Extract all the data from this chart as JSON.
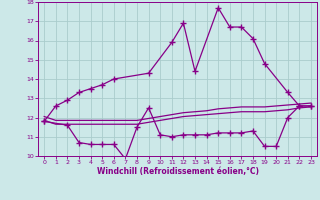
{
  "bg_color": "#cce8e8",
  "line_color": "#880088",
  "grid_color": "#aacccc",
  "xlabel": "Windchill (Refroidissement éolien,°C)",
  "xlim": [
    -0.5,
    23.5
  ],
  "ylim": [
    10,
    18
  ],
  "xticks": [
    0,
    1,
    2,
    3,
    4,
    5,
    6,
    7,
    8,
    9,
    10,
    11,
    12,
    13,
    14,
    15,
    16,
    17,
    18,
    19,
    20,
    21,
    22,
    23
  ],
  "yticks": [
    10,
    11,
    12,
    13,
    14,
    15,
    16,
    17,
    18
  ],
  "series1": {
    "x": [
      0,
      1,
      2,
      3,
      4,
      5,
      6,
      9,
      11,
      12,
      13,
      15,
      16,
      17,
      18,
      19,
      21,
      22,
      23
    ],
    "y": [
      11.8,
      12.6,
      12.9,
      13.3,
      13.5,
      13.7,
      14.0,
      14.3,
      15.9,
      16.9,
      14.4,
      17.7,
      16.7,
      16.7,
      16.1,
      14.8,
      13.3,
      12.6,
      12.6
    ],
    "marker": "+"
  },
  "series2": {
    "x": [
      0,
      2,
      3,
      4,
      5,
      6,
      7,
      8,
      9,
      10,
      11,
      12,
      13,
      14,
      15,
      16,
      17,
      18,
      19,
      20,
      21,
      22,
      23
    ],
    "y": [
      11.8,
      11.6,
      10.7,
      10.6,
      10.6,
      10.6,
      9.85,
      11.5,
      12.5,
      11.1,
      11.0,
      11.1,
      11.1,
      11.1,
      11.2,
      11.2,
      11.2,
      11.3,
      10.5,
      10.5,
      12.0,
      12.6,
      12.6
    ],
    "marker": "+"
  },
  "series3": {
    "x": [
      0,
      1,
      2,
      3,
      4,
      5,
      6,
      7,
      8,
      9,
      10,
      11,
      12,
      13,
      14,
      15,
      16,
      17,
      18,
      19,
      20,
      21,
      22,
      23
    ],
    "y": [
      11.85,
      11.65,
      11.65,
      11.65,
      11.65,
      11.65,
      11.65,
      11.65,
      11.65,
      11.75,
      11.85,
      11.95,
      12.05,
      12.1,
      12.15,
      12.2,
      12.25,
      12.3,
      12.3,
      12.3,
      12.35,
      12.4,
      12.5,
      12.55
    ]
  },
  "series4": {
    "x": [
      0,
      1,
      2,
      3,
      4,
      5,
      6,
      7,
      8,
      9,
      10,
      11,
      12,
      13,
      14,
      15,
      16,
      17,
      18,
      19,
      20,
      21,
      22,
      23
    ],
    "y": [
      12.05,
      11.85,
      11.85,
      11.85,
      11.85,
      11.85,
      11.85,
      11.85,
      11.85,
      11.95,
      12.05,
      12.15,
      12.25,
      12.3,
      12.35,
      12.45,
      12.5,
      12.55,
      12.55,
      12.55,
      12.6,
      12.65,
      12.7,
      12.75
    ]
  }
}
